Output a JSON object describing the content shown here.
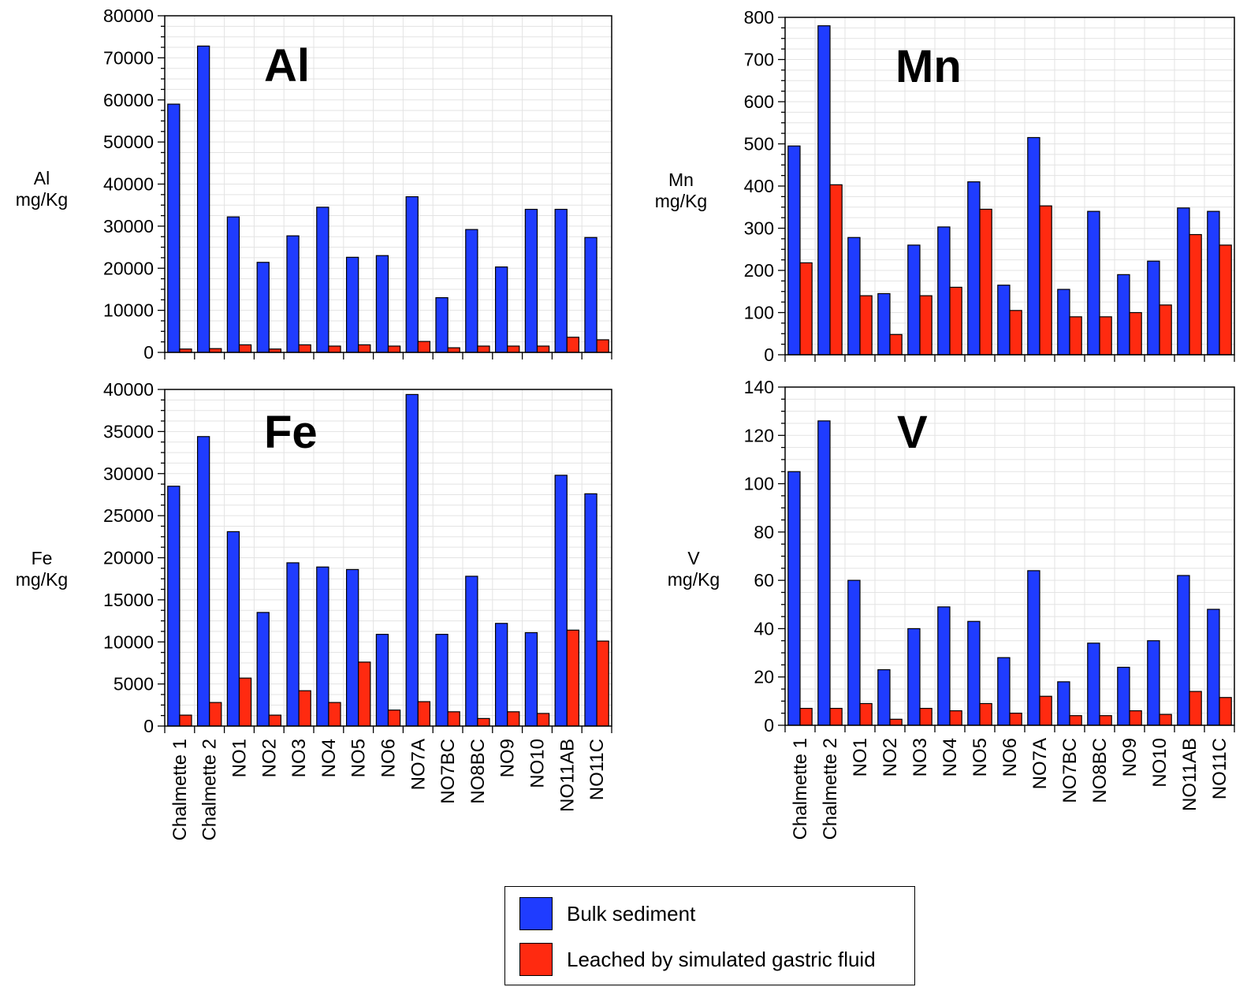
{
  "legend": {
    "bulk": "Bulk sediment",
    "leached": "Leached by simulated gastric fluid"
  },
  "colors": {
    "bulk": "#1f3cff",
    "leached": "#ff2a10",
    "grid": "#e3e3e3"
  },
  "chart_data": [
    {
      "type": "bar",
      "title": "Al",
      "ylabel": [
        "Al",
        "mg/Kg"
      ],
      "ylim": [
        0,
        80000
      ],
      "yticks": [
        0,
        10000,
        20000,
        30000,
        40000,
        50000,
        60000,
        70000,
        80000
      ],
      "categories": [
        "Chalmette 1",
        "Chalmette 2",
        "NO1",
        "NO2",
        "NO3",
        "NO4",
        "NO5",
        "NO6",
        "NO7A",
        "NO7BC",
        "NO8BC",
        "NO9",
        "NO10",
        "NO11AB",
        "NO11C"
      ],
      "show_category_labels": false,
      "series": [
        {
          "name": "Bulk sediment",
          "values": [
            59000,
            72800,
            32200,
            21400,
            27700,
            34500,
            22600,
            23000,
            37000,
            13000,
            29200,
            20300,
            34000,
            34000,
            27300
          ]
        },
        {
          "name": "Leached by simulated gastric fluid",
          "values": [
            800,
            900,
            1800,
            800,
            1800,
            1500,
            1800,
            1500,
            2600,
            1100,
            1500,
            1500,
            1500,
            3600,
            3000
          ]
        }
      ]
    },
    {
      "type": "bar",
      "title": "Mn",
      "ylabel": [
        "Mn",
        "mg/Kg"
      ],
      "ylim": [
        0,
        800
      ],
      "yticks": [
        0,
        100,
        200,
        300,
        400,
        500,
        600,
        700,
        800
      ],
      "categories": [
        "Chalmette 1",
        "Chalmette 2",
        "NO1",
        "NO2",
        "NO3",
        "NO4",
        "NO5",
        "NO6",
        "NO7A",
        "NO7BC",
        "NO8BC",
        "NO9",
        "NO10",
        "NO11AB",
        "NO11C"
      ],
      "show_category_labels": false,
      "series": [
        {
          "name": "Bulk sediment",
          "values": [
            495,
            780,
            278,
            145,
            260,
            303,
            410,
            165,
            515,
            155,
            340,
            190,
            222,
            348,
            340
          ]
        },
        {
          "name": "Leached by simulated gastric fluid",
          "values": [
            218,
            403,
            140,
            48,
            140,
            160,
            345,
            105,
            353,
            90,
            90,
            100,
            118,
            285,
            260
          ]
        }
      ]
    },
    {
      "type": "bar",
      "title": "Fe",
      "ylabel": [
        "Fe",
        "mg/Kg"
      ],
      "ylim": [
        0,
        40000
      ],
      "yticks": [
        0,
        5000,
        10000,
        15000,
        20000,
        25000,
        30000,
        35000,
        40000
      ],
      "categories": [
        "Chalmette 1",
        "Chalmette 2",
        "NO1",
        "NO2",
        "NO3",
        "NO4",
        "NO5",
        "NO6",
        "NO7A",
        "NO7BC",
        "NO8BC",
        "NO9",
        "NO10",
        "NO11AB",
        "NO11C"
      ],
      "show_category_labels": true,
      "series": [
        {
          "name": "Bulk sediment",
          "values": [
            28500,
            34400,
            23100,
            13500,
            19400,
            18900,
            18600,
            10900,
            39400,
            10900,
            17800,
            12200,
            11100,
            29800,
            27600
          ]
        },
        {
          "name": "Leached by simulated gastric fluid",
          "values": [
            1300,
            2800,
            5700,
            1300,
            4200,
            2800,
            7600,
            1900,
            2900,
            1700,
            900,
            1700,
            1500,
            11400,
            10100
          ]
        }
      ]
    },
    {
      "type": "bar",
      "title": "V",
      "ylabel": [
        "V",
        "mg/Kg"
      ],
      "ylim": [
        0,
        140
      ],
      "yticks": [
        0,
        20,
        40,
        60,
        80,
        100,
        120,
        140
      ],
      "categories": [
        "Chalmette 1",
        "Chalmette 2",
        "NO1",
        "NO2",
        "NO3",
        "NO4",
        "NO5",
        "NO6",
        "NO7A",
        "NO7BC",
        "NO8BC",
        "NO9",
        "NO10",
        "NO11AB",
        "NO11C"
      ],
      "show_category_labels": true,
      "series": [
        {
          "name": "Bulk sediment",
          "values": [
            105,
            126,
            60,
            23,
            40,
            49,
            43,
            28,
            64,
            18,
            34,
            24,
            35,
            62,
            48
          ]
        },
        {
          "name": "Leached by simulated gastric fluid",
          "values": [
            7,
            7,
            9,
            2.5,
            7,
            6,
            9,
            5,
            12,
            4,
            4,
            6,
            4.5,
            14,
            11.5
          ]
        }
      ]
    }
  ]
}
